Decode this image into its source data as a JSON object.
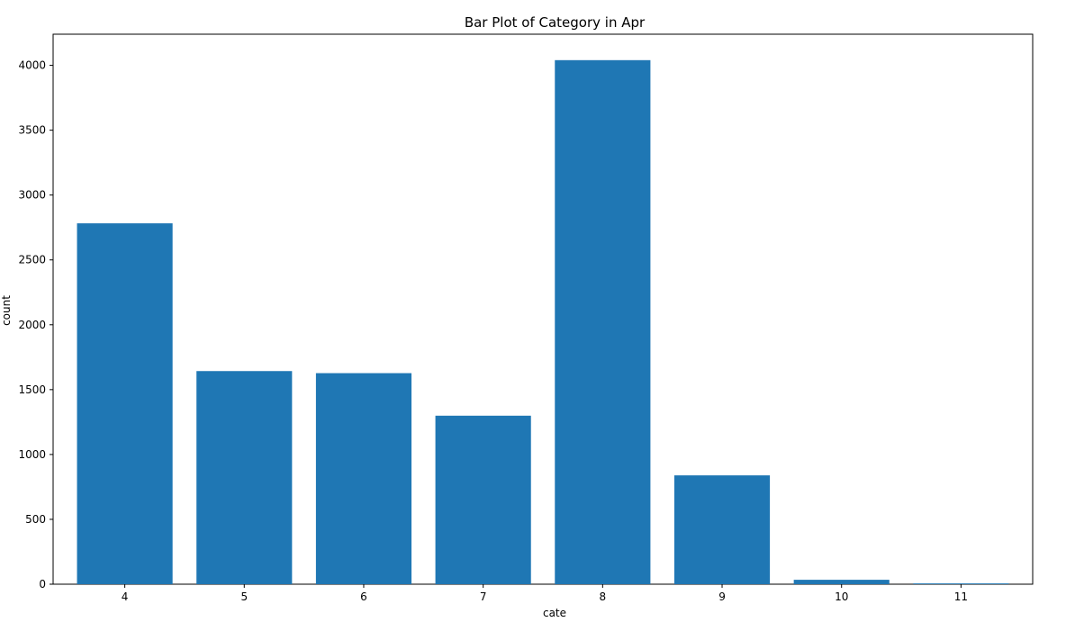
{
  "chart_data": {
    "type": "bar",
    "title": "Bar Plot of Category in Apr",
    "xlabel": "cate",
    "ylabel": "count",
    "categories": [
      "4",
      "5",
      "6",
      "7",
      "8",
      "9",
      "10",
      "11"
    ],
    "values": [
      2782,
      1643,
      1627,
      1299,
      4040,
      839,
      34,
      6
    ],
    "ylim": [
      0,
      4240
    ],
    "yticks": [
      0,
      500,
      1000,
      1500,
      2000,
      2500,
      3000,
      3500,
      4000
    ],
    "bar_color": "#1f77b4",
    "grid": false,
    "legend": "none"
  }
}
